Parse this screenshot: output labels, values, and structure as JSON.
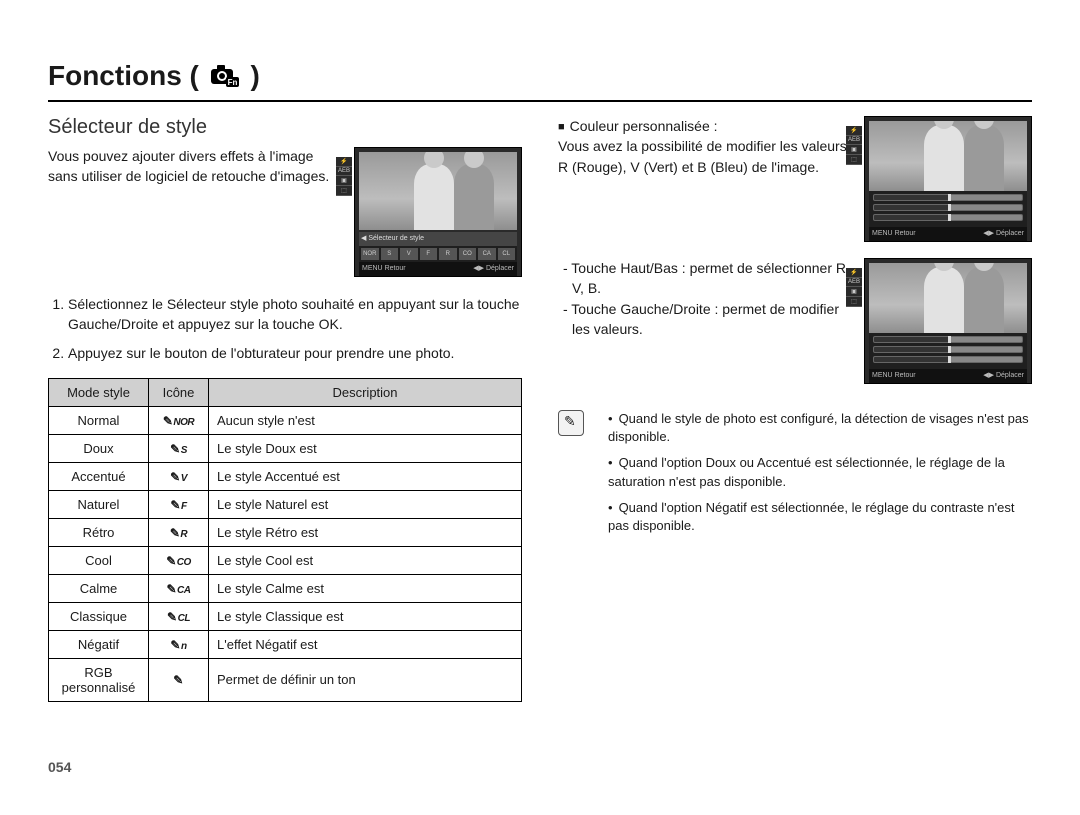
{
  "page": {
    "title_prefix": "Fonctions (",
    "title_suffix": ")",
    "number": "054"
  },
  "left": {
    "subheading": "Sélecteur de style",
    "intro": "Vous pouvez ajouter divers effets à l'image sans utiliser de logiciel de retouche d'images.",
    "steps": [
      "Sélectionnez le Sélecteur style photo souhaité en appuyant sur la touche Gauche/Droite et appuyez sur la touche OK.",
      "Appuyez sur le bouton de l'obturateur pour prendre une photo."
    ],
    "thumb": {
      "label": "Sélecteur de style",
      "footer_left": "Retour",
      "footer_right": "Déplacer"
    },
    "table": {
      "headers": [
        "Mode style",
        "Icône",
        "Description"
      ],
      "rows": [
        {
          "mode": "Normal",
          "icon": "NOR",
          "desc": "Aucun style n'est"
        },
        {
          "mode": "Doux",
          "icon": "S",
          "desc": "Le style Doux est"
        },
        {
          "mode": "Accentué",
          "icon": "V",
          "desc": "Le style Accentué est"
        },
        {
          "mode": "Naturel",
          "icon": "F",
          "desc": "Le style Naturel est"
        },
        {
          "mode": "Rétro",
          "icon": "R",
          "desc": "Le style Rétro est"
        },
        {
          "mode": "Cool",
          "icon": "CO",
          "desc": "Le style Cool est"
        },
        {
          "mode": "Calme",
          "icon": "CA",
          "desc": "Le style Calme est"
        },
        {
          "mode": "Classique",
          "icon": "CL",
          "desc": "Le style Classique est"
        },
        {
          "mode": "Négatif",
          "icon": "n",
          "desc": "L'effet Négatif est"
        },
        {
          "mode": "RGB personnalisé",
          "icon": "",
          "desc": "Permet de définir un ton"
        }
      ]
    }
  },
  "right": {
    "custom_color": {
      "title": "Couleur personnalisée :",
      "body": "Vous avez la possibilité de modifier les valeurs R (Rouge), V (Vert) et B (Bleu) de l'image."
    },
    "controls": [
      "- Touche Haut/Bas : permet de sélec­tionner R, V, B.",
      "- Touche Gauche/Droite : permet de modifier les valeurs."
    ],
    "thumb": {
      "footer_left": "Retour",
      "footer_right": "Déplacer"
    },
    "notes": [
      "Quand le style de photo est configuré, la détection de visages n'est pas disponible.",
      "Quand l'option Doux ou Accentué est sélectionnée, le réglage de la saturation n'est pas disponible.",
      "Quand l'option Négatif est sélectionnée, le réglage du contraste n'est pas disponible."
    ]
  },
  "colors": {
    "text": "#1a1a1a",
    "rule": "#000000",
    "table_header_bg": "#d0d0d0",
    "thumb_bg": "#2a2a2a"
  }
}
